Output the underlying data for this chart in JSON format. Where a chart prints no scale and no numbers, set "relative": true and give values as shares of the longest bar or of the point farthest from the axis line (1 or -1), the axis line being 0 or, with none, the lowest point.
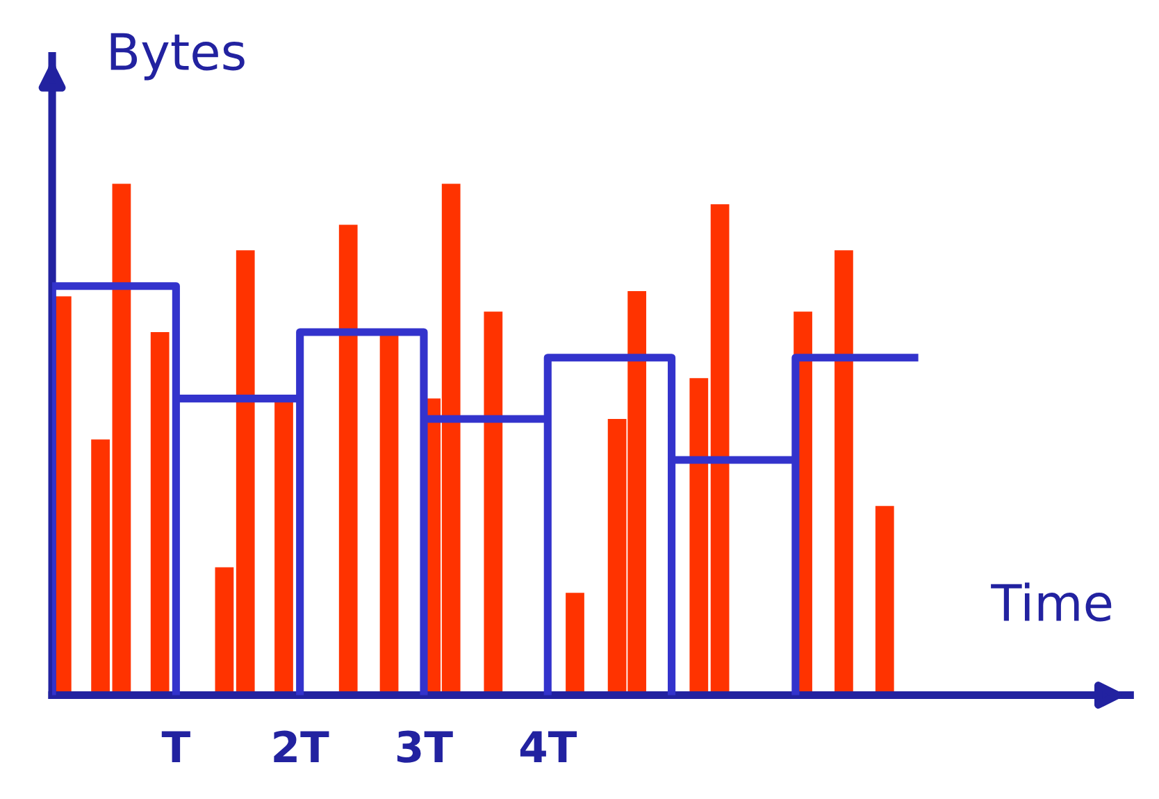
{
  "chart_data": {
    "type": "bar",
    "xlabel": "Time",
    "ylabel": "Bytes",
    "relative": true,
    "xlim": [
      0,
      8.7
    ],
    "xticks": [
      {
        "value": 1,
        "label": "T"
      },
      {
        "value": 2,
        "label": "2T"
      },
      {
        "value": 3,
        "label": "3T"
      },
      {
        "value": 4,
        "label": "4T"
      }
    ],
    "x": [
      0.08,
      0.39,
      0.56,
      0.87,
      1.39,
      1.56,
      1.87,
      2.39,
      2.72,
      3.06,
      3.22,
      3.56,
      4.22,
      4.56,
      4.72,
      5.22,
      5.39,
      6.06,
      6.39,
      6.72
    ],
    "series": [
      {
        "color": "#ff3300",
        "values": [
          0.78,
          0.5,
          1,
          0.71,
          0.25,
          0.87,
          0.58,
          0.92,
          0.71,
          0.58,
          1,
          0.75,
          0.2,
          0.54,
          0.79,
          0.62,
          0.96,
          0.75,
          0.87,
          0.37
        ]
      },
      {
        "type": "line",
        "color": "#3333cc",
        "x": [
          0,
          0,
          1,
          1,
          1,
          2,
          2,
          2,
          3,
          3,
          3,
          4,
          4,
          4,
          5,
          5,
          5,
          6,
          6,
          6,
          6.96
        ],
        "values": [
          0,
          0.8,
          0.8,
          0,
          0.58,
          0.58,
          0,
          0.71,
          0.71,
          0,
          0.54,
          0.54,
          0,
          0.66,
          0.66,
          0,
          0.46,
          0.46,
          0,
          0.66,
          0.66
        ]
      }
    ],
    "grid": false,
    "legend": false
  }
}
